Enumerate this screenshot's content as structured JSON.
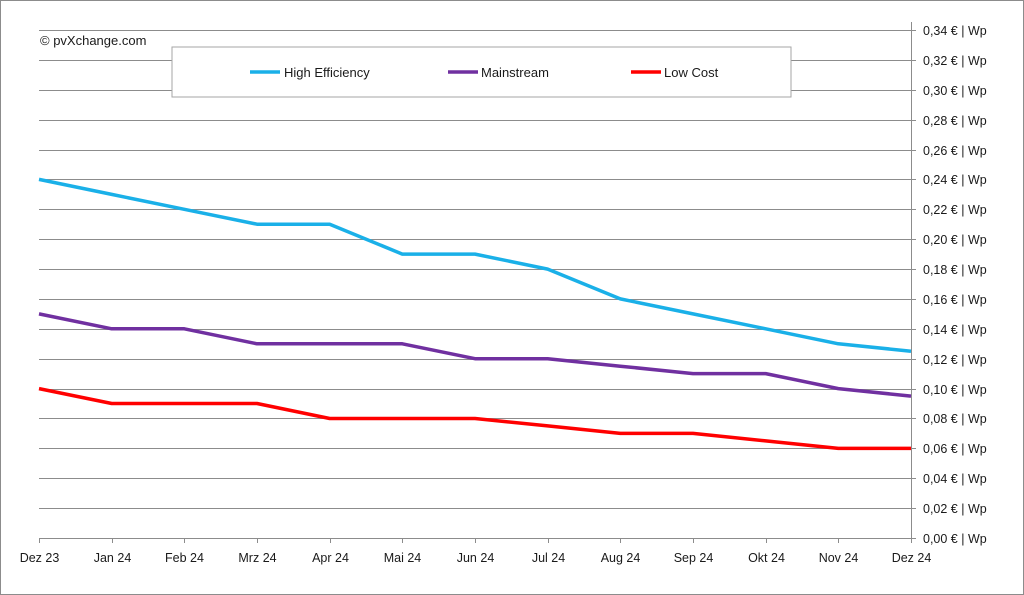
{
  "chart_data": {
    "type": "line",
    "copyright": "© pvXchange.com",
    "categories": [
      "Dez 23",
      "Jan 24",
      "Feb 24",
      "Mrz 24",
      "Apr 24",
      "Mai 24",
      "Jun 24",
      "Jul 24",
      "Aug 24",
      "Sep 24",
      "Okt 24",
      "Nov 24",
      "Dez 24"
    ],
    "series": [
      {
        "name": "High Efficiency",
        "color": "#1ab0e8",
        "values": [
          0.24,
          0.23,
          0.22,
          0.21,
          0.21,
          0.19,
          0.19,
          0.18,
          0.16,
          0.15,
          0.14,
          0.13,
          0.125
        ]
      },
      {
        "name": "Mainstream",
        "color": "#7030a0",
        "values": [
          0.15,
          0.14,
          0.14,
          0.13,
          0.13,
          0.13,
          0.12,
          0.12,
          0.115,
          0.11,
          0.11,
          0.1,
          0.095
        ]
      },
      {
        "name": "Low Cost",
        "color": "#ff0000",
        "values": [
          0.1,
          0.09,
          0.09,
          0.09,
          0.08,
          0.08,
          0.08,
          0.075,
          0.07,
          0.07,
          0.065,
          0.06,
          0.06
        ]
      }
    ],
    "y_ticks": [
      "0,00 € | Wp",
      "0,02 € | Wp",
      "0,04 € | Wp",
      "0,06 € | Wp",
      "0,08 € | Wp",
      "0,10 € | Wp",
      "0,12 € | Wp",
      "0,14 € | Wp",
      "0,16 € | Wp",
      "0,18 € | Wp",
      "0,20 € | Wp",
      "0,22 € | Wp",
      "0,24 € | Wp",
      "0,26 € | Wp",
      "0,28 € | Wp",
      "0,30 € | Wp",
      "0,32 € | Wp",
      "0,34 € | Wp"
    ],
    "ylim": [
      0,
      0.34
    ],
    "y_step": 0.02,
    "y_axis_position": "right",
    "grid": true,
    "legend_position": "top"
  }
}
